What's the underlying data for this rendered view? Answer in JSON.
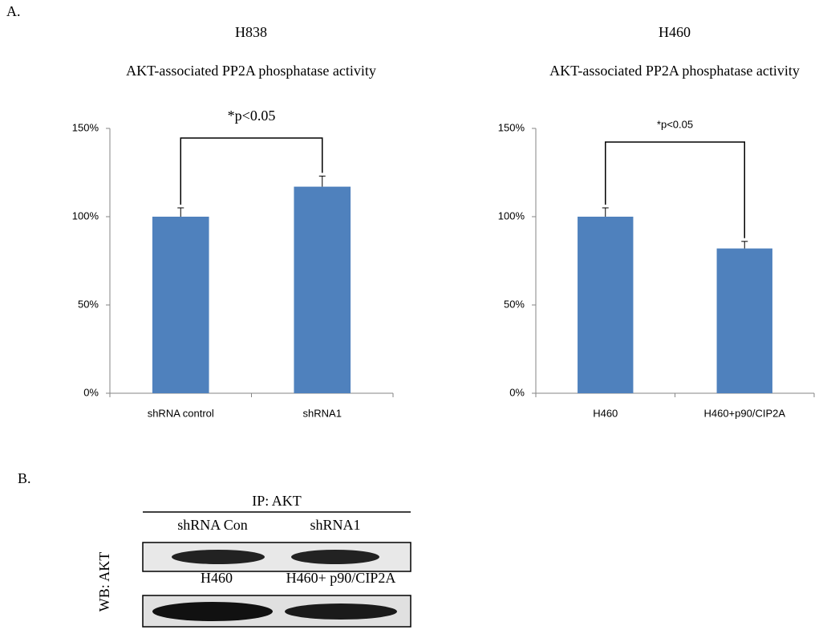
{
  "panel_labels": [
    "A.",
    "B."
  ],
  "chart_data": [
    {
      "type": "bar",
      "title": "H838",
      "subtitle": "AKT-associated PP2A phosphatase activity",
      "categories": [
        "shRNA control",
        "shRNA1"
      ],
      "values": [
        100,
        117
      ],
      "errors": [
        5,
        6
      ],
      "color": "#4f81bd",
      "ylim": [
        0,
        150
      ],
      "yticks": [
        {
          "value": 0,
          "label": "0%"
        },
        {
          "value": 50,
          "label": "50%"
        },
        {
          "value": 100,
          "label": "100%"
        },
        {
          "value": 150,
          "label": "150%"
        }
      ],
      "annotation": "*p<0.05"
    },
    {
      "type": "bar",
      "title": "H460",
      "subtitle": "AKT-associated PP2A phosphatase activity",
      "categories": [
        "H460",
        "H460+p90/CIP2A"
      ],
      "values": [
        100,
        82
      ],
      "errors": [
        5,
        4
      ],
      "color": "#4f81bd",
      "ylim": [
        0,
        150
      ],
      "yticks": [
        {
          "value": 0,
          "label": "0%"
        },
        {
          "value": 50,
          "label": "50%"
        },
        {
          "value": 100,
          "label": "100%"
        },
        {
          "value": 150,
          "label": "150%"
        }
      ],
      "annotation": "*p<0.05"
    }
  ],
  "blot": {
    "header": "IP: AKT",
    "row_label": "WB: AKT",
    "lanes": [
      [
        "shRNA Con",
        "shRNA1"
      ],
      [
        "H460",
        "H460+ p90/CIP2A"
      ]
    ]
  }
}
